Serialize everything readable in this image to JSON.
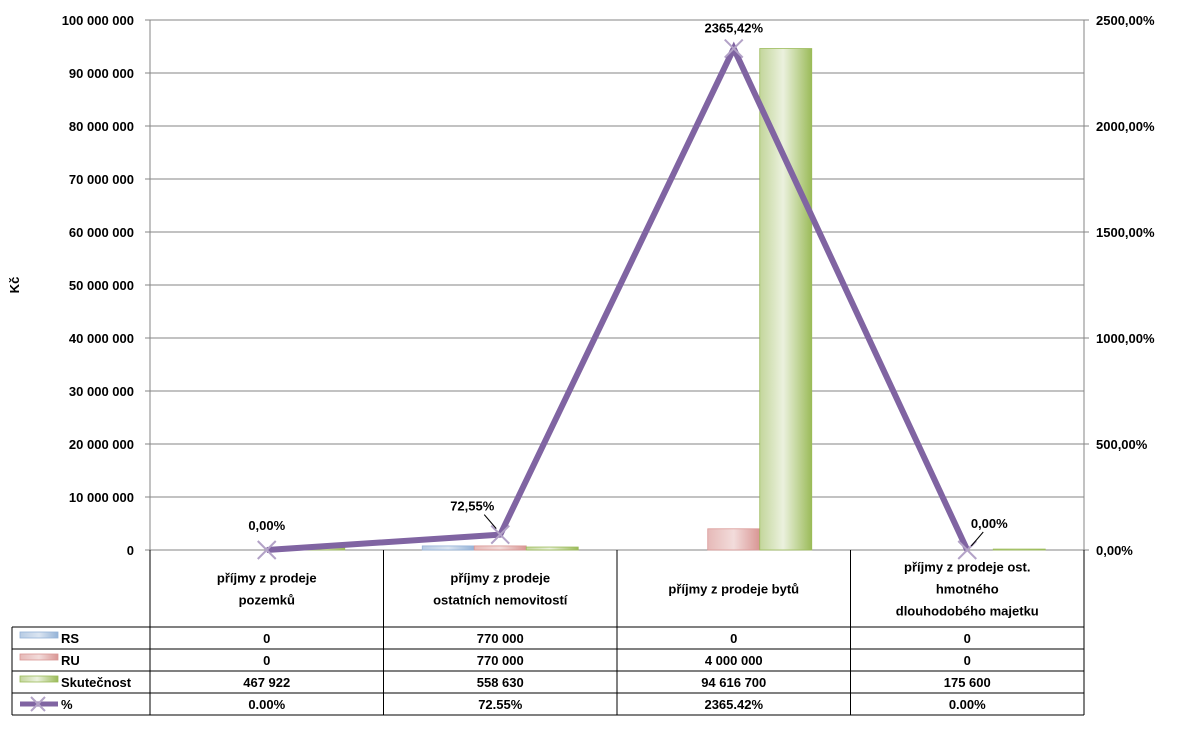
{
  "chart_data": {
    "type": "bar",
    "ylabel": "Kč",
    "categories": [
      [
        "příjmy z prodeje",
        "pozemků"
      ],
      [
        "příjmy z prodeje",
        "ostatních nemovitostí"
      ],
      [
        "příjmy z prodeje bytů"
      ],
      [
        "příjmy z prodeje ost.",
        "hmotného",
        "dlouhodobého majetku"
      ]
    ],
    "ylim": [
      0,
      100000000
    ],
    "y_ticks": [
      0,
      10000000,
      20000000,
      30000000,
      40000000,
      50000000,
      60000000,
      70000000,
      80000000,
      90000000,
      100000000
    ],
    "y_tick_labels": [
      "0",
      "10 000 000",
      "20 000 000",
      "30 000 000",
      "40 000 000",
      "50 000 000",
      "60 000 000",
      "70 000 000",
      "80 000 000",
      "90 000 000",
      "100 000 000"
    ],
    "y2lim": [
      0,
      2500
    ],
    "y2_ticks": [
      0,
      500,
      1000,
      1500,
      2000,
      2500
    ],
    "y2_tick_labels": [
      "0,00%",
      "500,00%",
      "1000,00%",
      "1500,00%",
      "2000,00%",
      "2500,00%"
    ],
    "grid": true,
    "series": [
      {
        "name": "RS",
        "type": "bar",
        "axis": "primary",
        "color": "#4f81bd",
        "values": [
          0,
          770000,
          0,
          0
        ],
        "table_labels": [
          "0",
          "770 000",
          "0",
          "0"
        ]
      },
      {
        "name": "RU",
        "type": "bar",
        "axis": "primary",
        "color": "#c0504d",
        "values": [
          0,
          770000,
          4000000,
          0
        ],
        "table_labels": [
          "0",
          "770 000",
          "4 000 000",
          "0"
        ]
      },
      {
        "name": "Skutečnost",
        "type": "bar",
        "axis": "primary",
        "color": "#9bbb59",
        "values": [
          467922,
          558630,
          94616700,
          175600
        ],
        "table_labels": [
          "467 922",
          "558 630",
          "94 616 700",
          "175 600"
        ]
      },
      {
        "name": "%",
        "type": "line",
        "axis": "secondary",
        "color": "#8064a2",
        "values": [
          0,
          72.55,
          2365.42,
          0
        ],
        "data_labels": [
          "0,00%",
          "72,55%",
          "2365,42%",
          "0,00%"
        ],
        "table_labels": [
          "0.00%",
          "72.55%",
          "2365.42%",
          "0.00%"
        ]
      }
    ]
  }
}
